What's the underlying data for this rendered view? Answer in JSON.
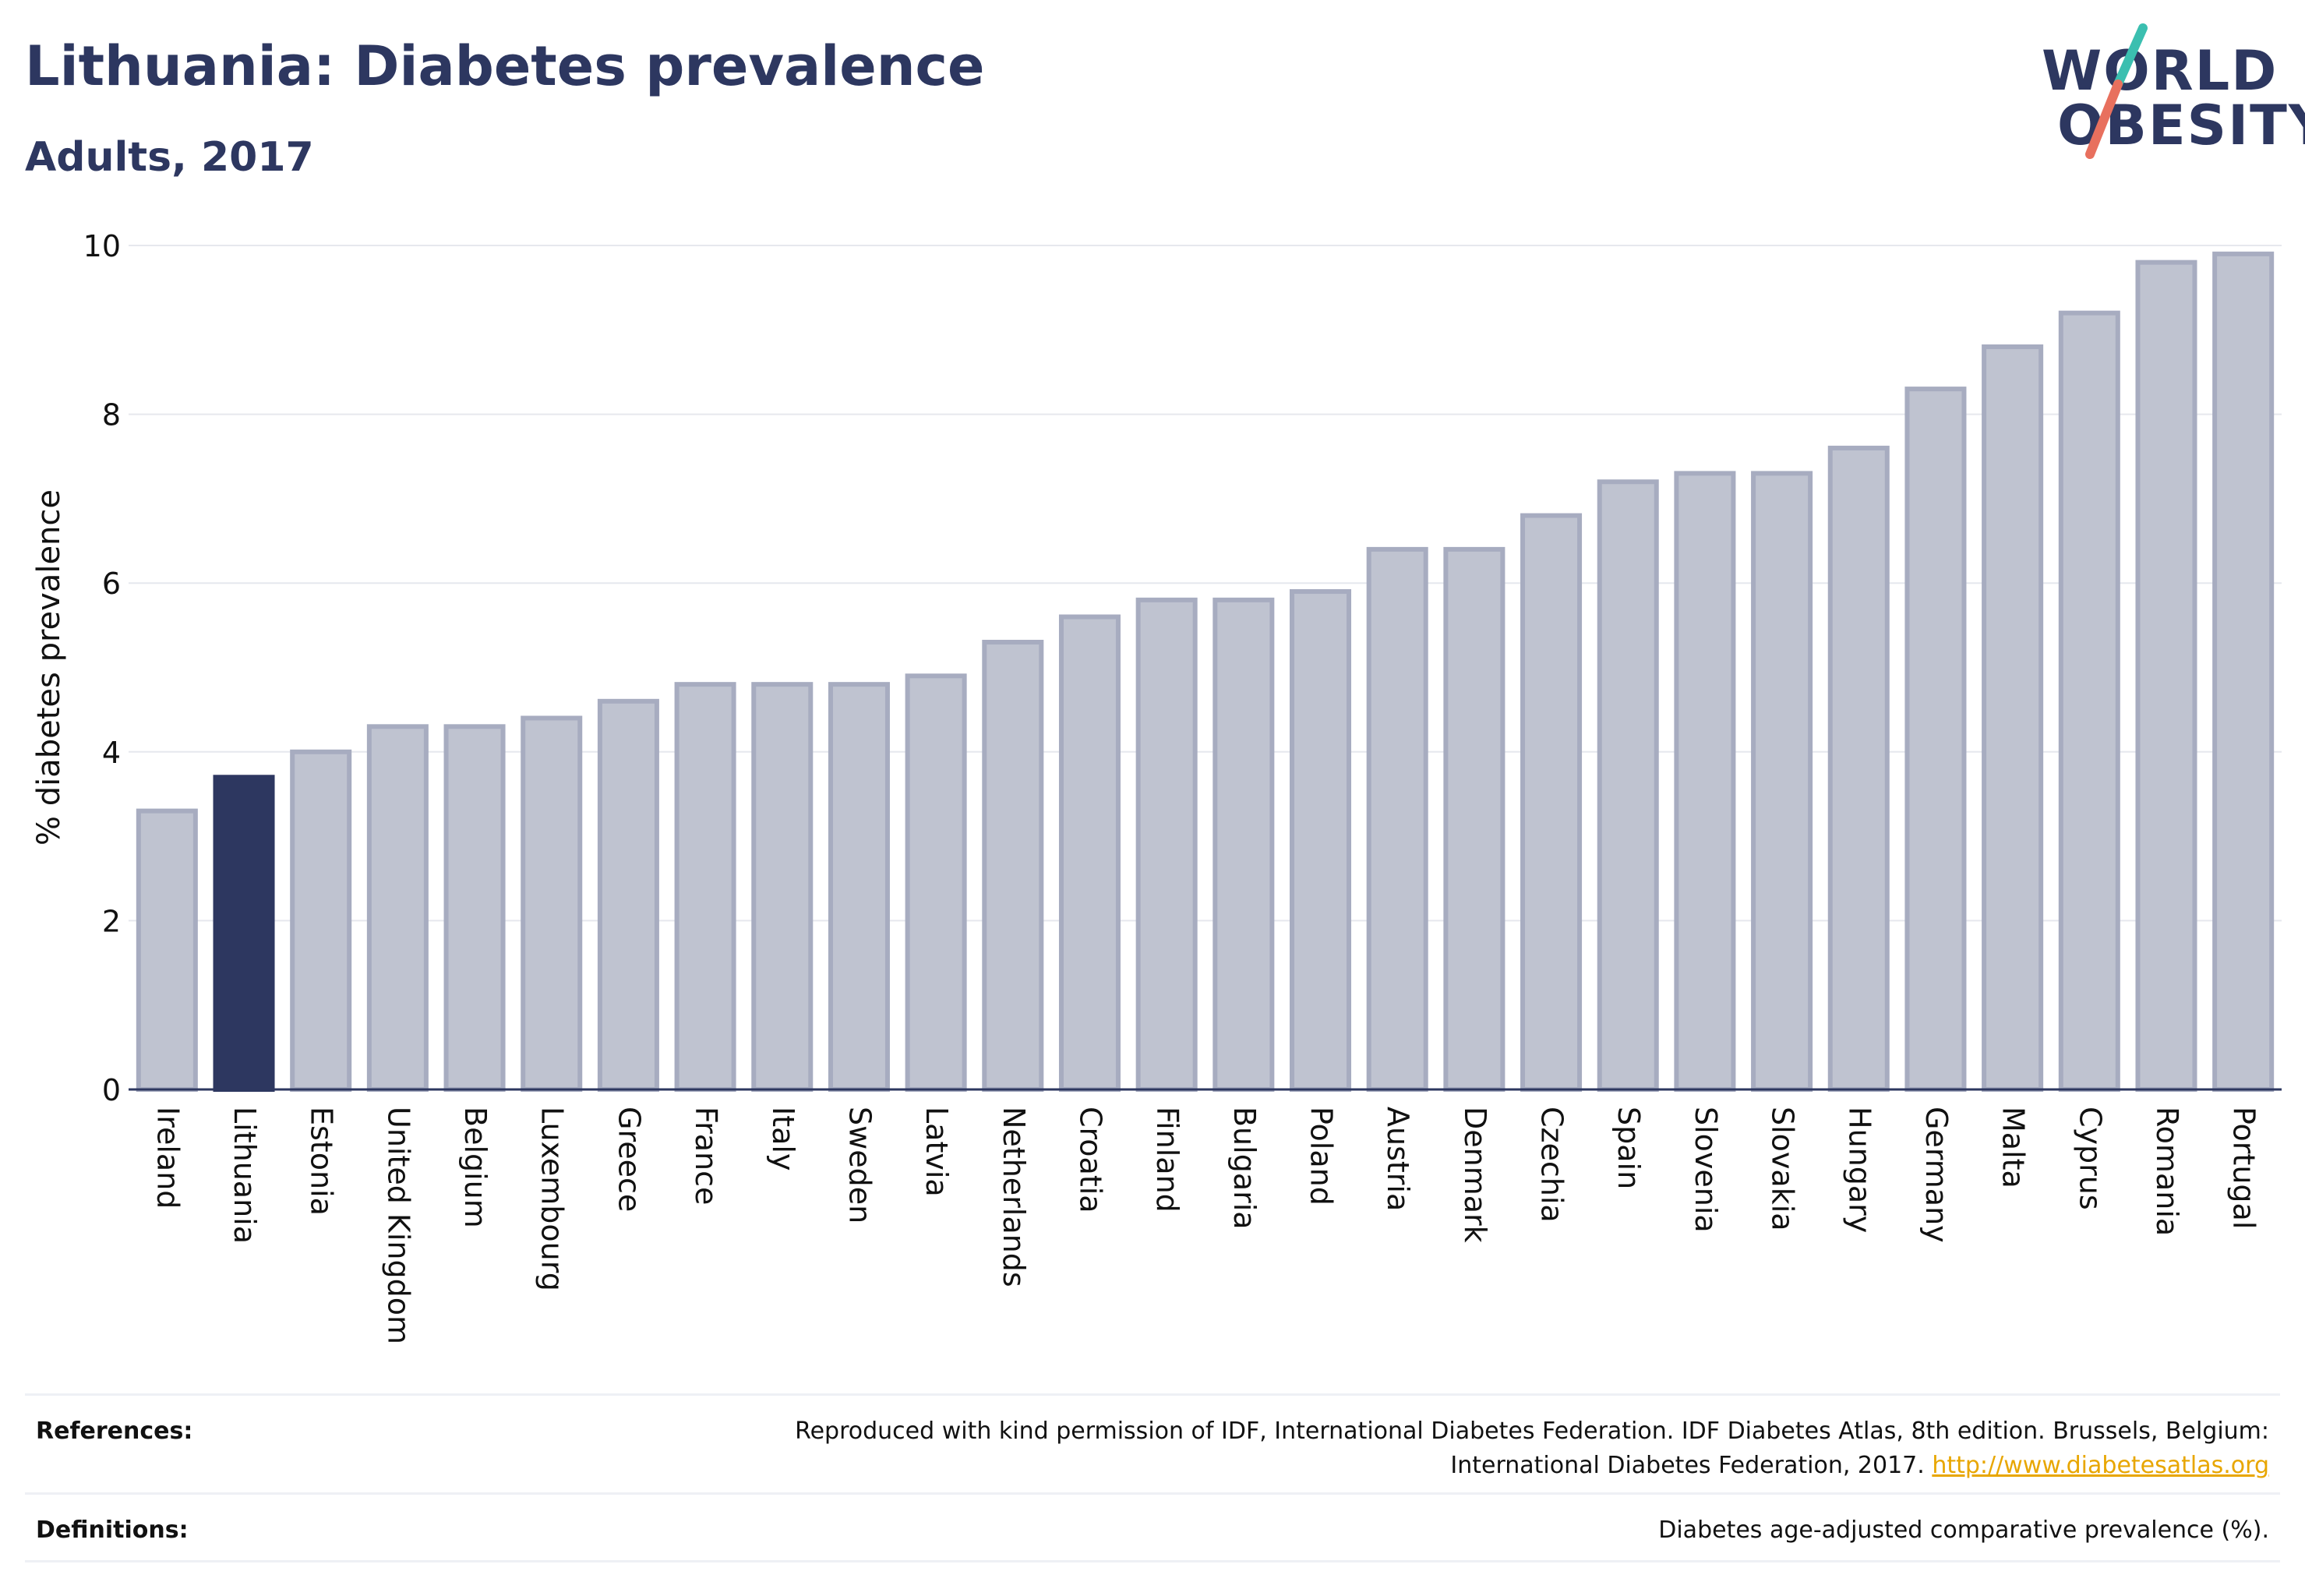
{
  "header": {
    "title": "Lithuania: Diabetes prevalence",
    "subtitle": "Adults, 2017"
  },
  "logo": {
    "line1": "WORLD",
    "line2": "OBESITY",
    "colors": {
      "text": "#2d3760",
      "slash_top": "#3bbfb0",
      "slash_bottom": "#e8705e"
    }
  },
  "chart_data": {
    "type": "bar",
    "title": "",
    "xlabel": "",
    "ylabel": "% diabetes prevalence",
    "ylim": [
      0,
      10
    ],
    "yticks": [
      0,
      2,
      4,
      6,
      8,
      10
    ],
    "grid": true,
    "highlight": "Lithuania",
    "colors": {
      "bar": "#bfc3d0",
      "bar_border": "#a7acc0",
      "highlight": "#2d3760",
      "grid": "#e6e8ee"
    },
    "categories": [
      "Ireland",
      "Lithuania",
      "Estonia",
      "United Kingdom",
      "Belgium",
      "Luxembourg",
      "Greece",
      "France",
      "Italy",
      "Sweden",
      "Latvia",
      "Netherlands",
      "Croatia",
      "Finland",
      "Bulgaria",
      "Poland",
      "Austria",
      "Denmark",
      "Czechia",
      "Spain",
      "Slovenia",
      "Slovakia",
      "Hungary",
      "Germany",
      "Malta",
      "Cyprus",
      "Romania",
      "Portugal"
    ],
    "values": [
      3.3,
      3.7,
      4.0,
      4.3,
      4.3,
      4.4,
      4.6,
      4.8,
      4.8,
      4.8,
      4.9,
      5.3,
      5.6,
      5.8,
      5.8,
      5.9,
      6.4,
      6.4,
      6.8,
      7.2,
      7.3,
      7.3,
      7.6,
      8.3,
      8.8,
      9.2,
      9.8,
      9.9
    ]
  },
  "footer": {
    "references_label": "References:",
    "references_line1": "Reproduced with kind permission of IDF, International Diabetes Federation. IDF Diabetes Atlas, 8th edition. Brussels, Belgium:",
    "references_line2": "International Diabetes Federation, 2017.",
    "references_link": "http://www.diabetesatlas.org",
    "definitions_label": "Definitions:",
    "definitions_text": "Diabetes age-adjusted comparative prevalence (%)."
  }
}
